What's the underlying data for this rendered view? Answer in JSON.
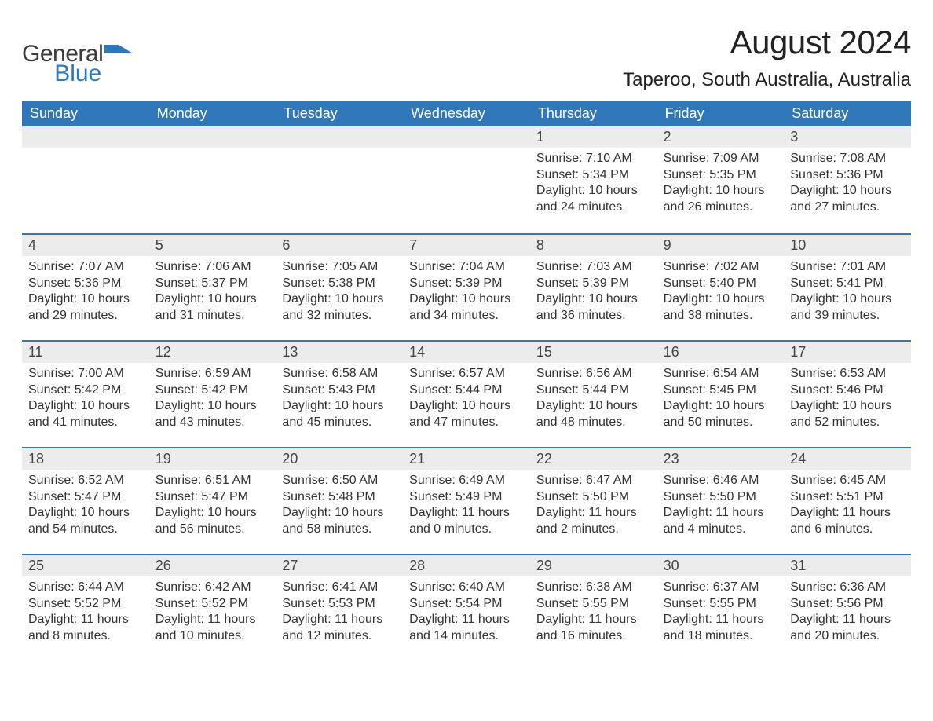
{
  "logo": {
    "word1": "General",
    "word2": "Blue",
    "mark_color": "#2f77b8",
    "text_dark": "#3b3b3b",
    "text_blue": "#2b7bbf"
  },
  "title": "August 2024",
  "location": "Taperoo, South Australia, Australia",
  "colors": {
    "header_bg": "#2f77b8",
    "header_text": "#ffffff",
    "daynum_bg": "#ececec",
    "body_text": "#333333",
    "divider": "#2f77b8",
    "page_bg": "#ffffff"
  },
  "font": {
    "family": "Arial",
    "title_size_pt": 32,
    "location_size_pt": 18,
    "weekday_size_pt": 14,
    "daynum_size_pt": 14,
    "body_size_pt": 12
  },
  "weekdays": [
    "Sunday",
    "Monday",
    "Tuesday",
    "Wednesday",
    "Thursday",
    "Friday",
    "Saturday"
  ],
  "weeks": [
    [
      null,
      null,
      null,
      null,
      {
        "n": "1",
        "sunrise": "7:10 AM",
        "sunset": "5:34 PM",
        "daylight": "10 hours and 24 minutes."
      },
      {
        "n": "2",
        "sunrise": "7:09 AM",
        "sunset": "5:35 PM",
        "daylight": "10 hours and 26 minutes."
      },
      {
        "n": "3",
        "sunrise": "7:08 AM",
        "sunset": "5:36 PM",
        "daylight": "10 hours and 27 minutes."
      }
    ],
    [
      {
        "n": "4",
        "sunrise": "7:07 AM",
        "sunset": "5:36 PM",
        "daylight": "10 hours and 29 minutes."
      },
      {
        "n": "5",
        "sunrise": "7:06 AM",
        "sunset": "5:37 PM",
        "daylight": "10 hours and 31 minutes."
      },
      {
        "n": "6",
        "sunrise": "7:05 AM",
        "sunset": "5:38 PM",
        "daylight": "10 hours and 32 minutes."
      },
      {
        "n": "7",
        "sunrise": "7:04 AM",
        "sunset": "5:39 PM",
        "daylight": "10 hours and 34 minutes."
      },
      {
        "n": "8",
        "sunrise": "7:03 AM",
        "sunset": "5:39 PM",
        "daylight": "10 hours and 36 minutes."
      },
      {
        "n": "9",
        "sunrise": "7:02 AM",
        "sunset": "5:40 PM",
        "daylight": "10 hours and 38 minutes."
      },
      {
        "n": "10",
        "sunrise": "7:01 AM",
        "sunset": "5:41 PM",
        "daylight": "10 hours and 39 minutes."
      }
    ],
    [
      {
        "n": "11",
        "sunrise": "7:00 AM",
        "sunset": "5:42 PM",
        "daylight": "10 hours and 41 minutes."
      },
      {
        "n": "12",
        "sunrise": "6:59 AM",
        "sunset": "5:42 PM",
        "daylight": "10 hours and 43 minutes."
      },
      {
        "n": "13",
        "sunrise": "6:58 AM",
        "sunset": "5:43 PM",
        "daylight": "10 hours and 45 minutes."
      },
      {
        "n": "14",
        "sunrise": "6:57 AM",
        "sunset": "5:44 PM",
        "daylight": "10 hours and 47 minutes."
      },
      {
        "n": "15",
        "sunrise": "6:56 AM",
        "sunset": "5:44 PM",
        "daylight": "10 hours and 48 minutes."
      },
      {
        "n": "16",
        "sunrise": "6:54 AM",
        "sunset": "5:45 PM",
        "daylight": "10 hours and 50 minutes."
      },
      {
        "n": "17",
        "sunrise": "6:53 AM",
        "sunset": "5:46 PM",
        "daylight": "10 hours and 52 minutes."
      }
    ],
    [
      {
        "n": "18",
        "sunrise": "6:52 AM",
        "sunset": "5:47 PM",
        "daylight": "10 hours and 54 minutes."
      },
      {
        "n": "19",
        "sunrise": "6:51 AM",
        "sunset": "5:47 PM",
        "daylight": "10 hours and 56 minutes."
      },
      {
        "n": "20",
        "sunrise": "6:50 AM",
        "sunset": "5:48 PM",
        "daylight": "10 hours and 58 minutes."
      },
      {
        "n": "21",
        "sunrise": "6:49 AM",
        "sunset": "5:49 PM",
        "daylight": "11 hours and 0 minutes."
      },
      {
        "n": "22",
        "sunrise": "6:47 AM",
        "sunset": "5:50 PM",
        "daylight": "11 hours and 2 minutes."
      },
      {
        "n": "23",
        "sunrise": "6:46 AM",
        "sunset": "5:50 PM",
        "daylight": "11 hours and 4 minutes."
      },
      {
        "n": "24",
        "sunrise": "6:45 AM",
        "sunset": "5:51 PM",
        "daylight": "11 hours and 6 minutes."
      }
    ],
    [
      {
        "n": "25",
        "sunrise": "6:44 AM",
        "sunset": "5:52 PM",
        "daylight": "11 hours and 8 minutes."
      },
      {
        "n": "26",
        "sunrise": "6:42 AM",
        "sunset": "5:52 PM",
        "daylight": "11 hours and 10 minutes."
      },
      {
        "n": "27",
        "sunrise": "6:41 AM",
        "sunset": "5:53 PM",
        "daylight": "11 hours and 12 minutes."
      },
      {
        "n": "28",
        "sunrise": "6:40 AM",
        "sunset": "5:54 PM",
        "daylight": "11 hours and 14 minutes."
      },
      {
        "n": "29",
        "sunrise": "6:38 AM",
        "sunset": "5:55 PM",
        "daylight": "11 hours and 16 minutes."
      },
      {
        "n": "30",
        "sunrise": "6:37 AM",
        "sunset": "5:55 PM",
        "daylight": "11 hours and 18 minutes."
      },
      {
        "n": "31",
        "sunrise": "6:36 AM",
        "sunset": "5:56 PM",
        "daylight": "11 hours and 20 minutes."
      }
    ]
  ],
  "labels": {
    "sunrise": "Sunrise: ",
    "sunset": "Sunset: ",
    "daylight": "Daylight: "
  }
}
